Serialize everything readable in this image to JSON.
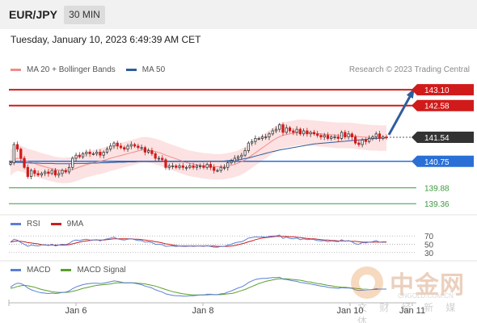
{
  "header": {
    "pair": "EUR/JPY",
    "timeframe": "30 MIN",
    "datetime": "Tuesday, January 10, 2023 6:49:39 AM CET"
  },
  "legend_main": [
    {
      "label": "MA 20 + Bollinger Bands",
      "color": "#f28b8b"
    },
    {
      "label": "MA 50",
      "color": "#2f5d9e"
    }
  ],
  "credit": "Research © 2023 Trading Central",
  "legend_rsi": [
    {
      "label": "RSI",
      "color": "#5b7fd6"
    },
    {
      "label": "9MA",
      "color": "#cc1f1f"
    }
  ],
  "legend_macd": [
    {
      "label": "MACD",
      "color": "#5b7fd6"
    },
    {
      "label": "MACD Signal",
      "color": "#5aa02c"
    }
  ],
  "watermark": {
    "main": "中金网",
    "url": "CNGOLD.COM.CN",
    "sub": "文 财 经 新 媒 体"
  },
  "colors": {
    "resistance": "#d11a1a",
    "current": "#333333",
    "pivot": "#2a6fd6",
    "support": "#3d9a3d",
    "candle_up": "#3a3a3a",
    "candle_down": "#d11a1a",
    "band_fill": "#fbd8d8",
    "arrow": "#2f5d9e"
  },
  "chart_data": [
    {
      "type": "candlestick",
      "title": "",
      "y_range": [
        139.1,
        143.5
      ],
      "x_labels": [
        "Jan 6",
        "Jan 8",
        "Jan 10",
        "Jan 11"
      ],
      "levels": [
        {
          "label": "143.10",
          "value": 143.1,
          "kind": "resistance"
        },
        {
          "label": "142.58",
          "value": 142.58,
          "kind": "resistance"
        },
        {
          "label": "141.54",
          "value": 141.54,
          "kind": "current"
        },
        {
          "label": "140.75",
          "value": 140.75,
          "kind": "pivot"
        },
        {
          "label": "139.88",
          "value": 139.88,
          "kind": "support"
        },
        {
          "label": "139.36",
          "value": 139.36,
          "kind": "support"
        }
      ],
      "close": [
        140.7,
        141.3,
        141.15,
        140.85,
        140.55,
        140.25,
        140.45,
        140.35,
        140.3,
        140.35,
        140.4,
        140.35,
        140.45,
        140.3,
        140.35,
        140.45,
        140.4,
        140.55,
        140.85,
        140.95,
        140.9,
        141.0,
        141.05,
        141.0,
        141.0,
        141.05,
        140.95,
        141.05,
        141.15,
        141.25,
        141.35,
        141.25,
        141.2,
        141.15,
        141.25,
        141.3,
        141.25,
        141.2,
        141.2,
        141.05,
        141.1,
        141.0,
        140.85,
        140.85,
        140.8,
        140.55,
        140.6,
        140.6,
        140.55,
        140.6,
        140.55,
        140.55,
        140.6,
        140.55,
        140.6,
        140.6,
        140.55,
        140.65,
        140.55,
        140.45,
        140.45,
        140.55,
        140.55,
        140.7,
        140.75,
        140.85,
        140.9,
        140.95,
        141.1,
        141.35,
        141.4,
        141.5,
        141.5,
        141.55,
        141.55,
        141.65,
        141.75,
        141.8,
        141.95,
        141.7,
        141.85,
        141.75,
        141.7,
        141.8,
        141.65,
        141.75,
        141.65,
        141.7,
        141.65,
        141.6,
        141.55,
        141.6,
        141.5,
        141.55,
        141.55,
        141.5,
        141.7,
        141.55,
        141.65,
        141.55,
        141.35,
        141.3,
        141.45,
        141.4,
        141.5,
        141.55,
        141.65,
        141.5,
        141.55,
        141.54
      ],
      "ma50": [
        140.72,
        140.72,
        140.71,
        140.71,
        140.7,
        140.7,
        140.69,
        140.69,
        140.69,
        140.68,
        140.68,
        140.68,
        140.68,
        140.67,
        140.67,
        140.67,
        140.67,
        140.67,
        140.67,
        140.68,
        140.68,
        140.68,
        140.68,
        140.69,
        140.69,
        140.69,
        140.7,
        140.7,
        140.7,
        140.71,
        140.71,
        140.72,
        140.72,
        140.72,
        140.73,
        140.73,
        140.73,
        140.74,
        140.74,
        140.74,
        140.74,
        140.74,
        140.74,
        140.74,
        140.74,
        140.74,
        140.74,
        140.74,
        140.74,
        140.74,
        140.74,
        140.74,
        140.74,
        140.74,
        140.74,
        140.74,
        140.74,
        140.75,
        140.75,
        140.75,
        140.75,
        140.75,
        140.76,
        140.77,
        140.78,
        140.79,
        140.8,
        140.82,
        140.84,
        140.86,
        140.89,
        140.92,
        140.95,
        140.98,
        141.01,
        141.04,
        141.07,
        141.09,
        141.12,
        141.14,
        141.16,
        141.18,
        141.2,
        141.22,
        141.24,
        141.26,
        141.28,
        141.3,
        141.32,
        141.33,
        141.34,
        141.35,
        141.36,
        141.37,
        141.38,
        141.39,
        141.4,
        141.41,
        141.42,
        141.43,
        141.44,
        141.45,
        141.46,
        141.47,
        141.48,
        141.49,
        141.5,
        141.51,
        141.52,
        141.53
      ],
      "ma20": [
        140.7,
        140.8,
        140.85,
        140.84,
        140.8,
        140.74,
        140.71,
        140.68,
        140.64,
        140.6,
        140.57,
        140.54,
        140.51,
        140.48,
        140.46,
        140.45,
        140.45,
        140.46,
        140.48,
        140.52,
        140.56,
        140.6,
        140.64,
        140.67,
        140.7,
        140.73,
        140.75,
        140.78,
        140.81,
        140.85,
        140.88,
        140.91,
        140.94,
        140.97,
        141.0,
        141.03,
        141.06,
        141.09,
        141.12,
        141.13,
        141.12,
        141.1,
        141.07,
        141.04,
        141.0,
        140.95,
        140.91,
        140.87,
        140.83,
        140.79,
        140.75,
        140.71,
        140.68,
        140.66,
        140.64,
        140.62,
        140.6,
        140.59,
        140.58,
        140.57,
        140.57,
        140.57,
        140.58,
        140.6,
        140.62,
        140.65,
        140.69,
        140.74,
        140.8,
        140.87,
        140.95,
        141.03,
        141.11,
        141.19,
        141.27,
        141.35,
        141.43,
        141.5,
        141.56,
        141.6,
        141.63,
        141.65,
        141.67,
        141.69,
        141.7,
        141.7,
        141.69,
        141.68,
        141.67,
        141.66,
        141.65,
        141.64,
        141.63,
        141.62,
        141.61,
        141.6,
        141.6,
        141.6,
        141.6,
        141.59,
        141.58,
        141.56,
        141.55,
        141.54,
        141.53,
        141.52,
        141.52,
        141.51,
        141.51,
        141.51
      ],
      "band_width": 0.42
    },
    {
      "type": "line",
      "title": "RSI",
      "y_ticks": [
        70,
        50,
        30
      ],
      "y_range": [
        20,
        80
      ],
      "series": [
        {
          "name": "RSI",
          "values": [
            55,
            62,
            60,
            54,
            50,
            45,
            48,
            47,
            46,
            48,
            49,
            47,
            50,
            46,
            48,
            50,
            49,
            52,
            58,
            60,
            59,
            61,
            62,
            60,
            60,
            61,
            58,
            61,
            63,
            65,
            67,
            63,
            61,
            60,
            62,
            63,
            61,
            59,
            59,
            55,
            56,
            54,
            50,
            50,
            49,
            45,
            46,
            46,
            45,
            46,
            45,
            45,
            46,
            45,
            46,
            46,
            45,
            47,
            45,
            43,
            43,
            45,
            45,
            48,
            50,
            53,
            55,
            56,
            60,
            65,
            66,
            68,
            67,
            68,
            67,
            69,
            70,
            70,
            72,
            64,
            67,
            64,
            63,
            65,
            61,
            63,
            61,
            62,
            61,
            59,
            58,
            59,
            56,
            58,
            57,
            56,
            61,
            57,
            59,
            56,
            51,
            50,
            54,
            53,
            55,
            56,
            59,
            55,
            56,
            56
          ]
        },
        {
          "name": "9MA",
          "values": [
            55,
            57,
            58,
            57,
            56,
            54,
            53,
            52,
            51,
            49,
            48,
            48,
            48,
            48,
            48,
            48,
            48,
            49,
            51,
            53,
            55,
            57,
            58,
            59,
            60,
            60,
            60,
            60,
            61,
            62,
            63,
            63,
            63,
            63,
            63,
            63,
            62,
            62,
            61,
            60,
            59,
            58,
            56,
            55,
            53,
            51,
            50,
            48,
            47,
            46,
            46,
            46,
            46,
            46,
            46,
            46,
            46,
            46,
            46,
            46,
            45,
            45,
            45,
            45,
            46,
            47,
            49,
            51,
            53,
            56,
            58,
            61,
            63,
            65,
            66,
            67,
            68,
            69,
            69,
            69,
            69,
            68,
            68,
            67,
            66,
            65,
            64,
            63,
            63,
            62,
            61,
            60,
            60,
            59,
            59,
            58,
            58,
            58,
            58,
            57,
            57,
            56,
            55,
            55,
            55,
            55,
            55,
            55,
            55,
            55
          ]
        }
      ]
    },
    {
      "type": "line",
      "title": "MACD",
      "y_range": [
        -0.35,
        0.35
      ],
      "series": [
        {
          "name": "MACD",
          "values": [
            0.05,
            0.12,
            0.16,
            0.15,
            0.1,
            0.03,
            -0.02,
            -0.05,
            -0.08,
            -0.1,
            -0.11,
            -0.12,
            -0.11,
            -0.12,
            -0.11,
            -0.09,
            -0.08,
            -0.05,
            0.01,
            0.06,
            0.09,
            0.12,
            0.14,
            0.15,
            0.16,
            0.16,
            0.15,
            0.16,
            0.18,
            0.2,
            0.22,
            0.21,
            0.19,
            0.17,
            0.17,
            0.17,
            0.16,
            0.14,
            0.12,
            0.08,
            0.06,
            0.03,
            -0.02,
            -0.05,
            -0.08,
            -0.13,
            -0.15,
            -0.17,
            -0.18,
            -0.18,
            -0.19,
            -0.19,
            -0.18,
            -0.18,
            -0.17,
            -0.16,
            -0.16,
            -0.14,
            -0.14,
            -0.15,
            -0.15,
            -0.13,
            -0.12,
            -0.08,
            -0.05,
            -0.01,
            0.03,
            0.06,
            0.11,
            0.18,
            0.22,
            0.26,
            0.28,
            0.29,
            0.29,
            0.3,
            0.31,
            0.31,
            0.32,
            0.27,
            0.26,
            0.24,
            0.22,
            0.21,
            0.18,
            0.17,
            0.15,
            0.14,
            0.12,
            0.1,
            0.08,
            0.07,
            0.05,
            0.04,
            0.03,
            0.02,
            0.04,
            0.03,
            0.03,
            0.02,
            -0.02,
            -0.04,
            -0.03,
            -0.03,
            -0.02,
            -0.01,
            0.01,
            0.0,
            0.0,
            0.0
          ]
        },
        {
          "name": "MACD Signal",
          "values": [
            0.02,
            0.04,
            0.07,
            0.09,
            0.1,
            0.09,
            0.07,
            0.05,
            0.02,
            -0.01,
            -0.03,
            -0.05,
            -0.07,
            -0.08,
            -0.09,
            -0.09,
            -0.09,
            -0.08,
            -0.06,
            -0.04,
            -0.01,
            0.02,
            0.04,
            0.06,
            0.08,
            0.1,
            0.11,
            0.12,
            0.13,
            0.14,
            0.16,
            0.17,
            0.17,
            0.17,
            0.17,
            0.17,
            0.17,
            0.16,
            0.15,
            0.14,
            0.12,
            0.1,
            0.08,
            0.05,
            0.02,
            -0.01,
            -0.04,
            -0.07,
            -0.09,
            -0.11,
            -0.13,
            -0.14,
            -0.15,
            -0.16,
            -0.16,
            -0.16,
            -0.16,
            -0.16,
            -0.15,
            -0.15,
            -0.15,
            -0.15,
            -0.14,
            -0.13,
            -0.12,
            -0.1,
            -0.07,
            -0.04,
            -0.01,
            0.03,
            0.07,
            0.11,
            0.15,
            0.18,
            0.21,
            0.23,
            0.25,
            0.27,
            0.28,
            0.28,
            0.28,
            0.27,
            0.26,
            0.25,
            0.24,
            0.22,
            0.2,
            0.19,
            0.17,
            0.15,
            0.14,
            0.12,
            0.1,
            0.09,
            0.07,
            0.06,
            0.05,
            0.05,
            0.04,
            0.03,
            0.02,
            0.01,
            0.0,
            0.0,
            -0.01,
            -0.01,
            -0.01,
            0.0,
            0.0,
            0.0
          ]
        }
      ]
    }
  ]
}
